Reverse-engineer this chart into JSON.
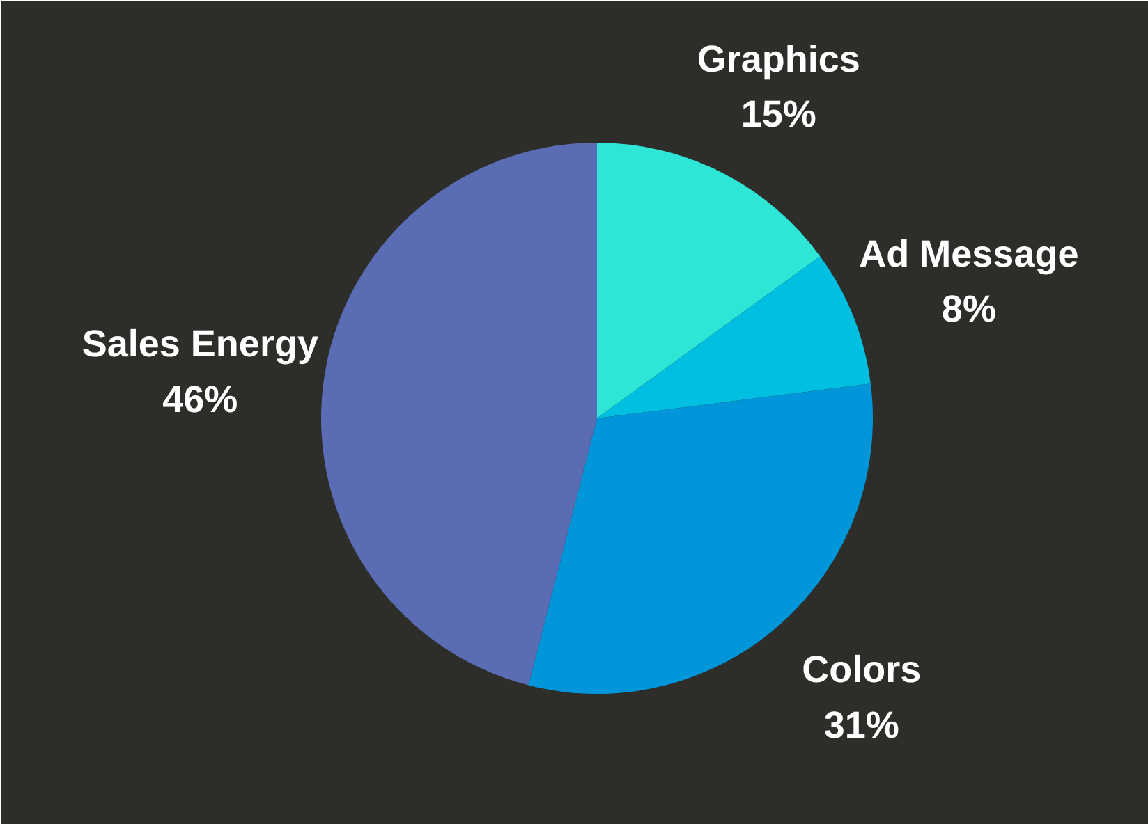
{
  "chart_data": {
    "type": "pie",
    "categories": [
      "Graphics",
      "Ad Message",
      "Colors",
      "Sales Energy"
    ],
    "values": [
      15,
      8,
      31,
      46
    ],
    "colors": [
      "#2ee6d6",
      "#00bfe0",
      "#0096d9",
      "#5a6cb3"
    ],
    "value_labels": [
      "15%",
      "8%",
      "31%",
      "46%"
    ]
  }
}
